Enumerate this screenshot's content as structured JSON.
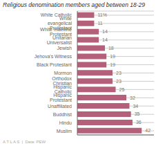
{
  "chart_data": {
    "type": "bar",
    "title": "Religious denomination members aged between 18-29",
    "categories": [
      "White Catholic",
      "White evangelical Protestant",
      "White mainline Protestant",
      "Unitarian Universalist",
      "Jewish",
      "Jehova's Witness",
      "Black Protestant",
      "Mormon",
      "Orthodox Christian",
      "Hispanic Catholic",
      "Hispanic Protestant",
      "Unaffiliated",
      "Buddhist",
      "Hindu",
      "Muslim"
    ],
    "values": [
      11,
      11,
      14,
      14,
      18,
      19,
      19,
      23,
      23,
      25,
      32,
      34,
      35,
      36,
      42
    ],
    "value_labels": [
      "11%",
      "11",
      "14",
      "14",
      "18",
      "19",
      "19",
      "23",
      "23",
      "25",
      "32",
      "34",
      "35",
      "36",
      "42"
    ],
    "data_labels": true,
    "color": "#b5607a",
    "orientation": "horizontal",
    "xlim": [
      0,
      50
    ],
    "grid": true,
    "tick_labels": "y",
    "annotations": [
      "A T L A S  |  Data: PEW"
    ]
  }
}
